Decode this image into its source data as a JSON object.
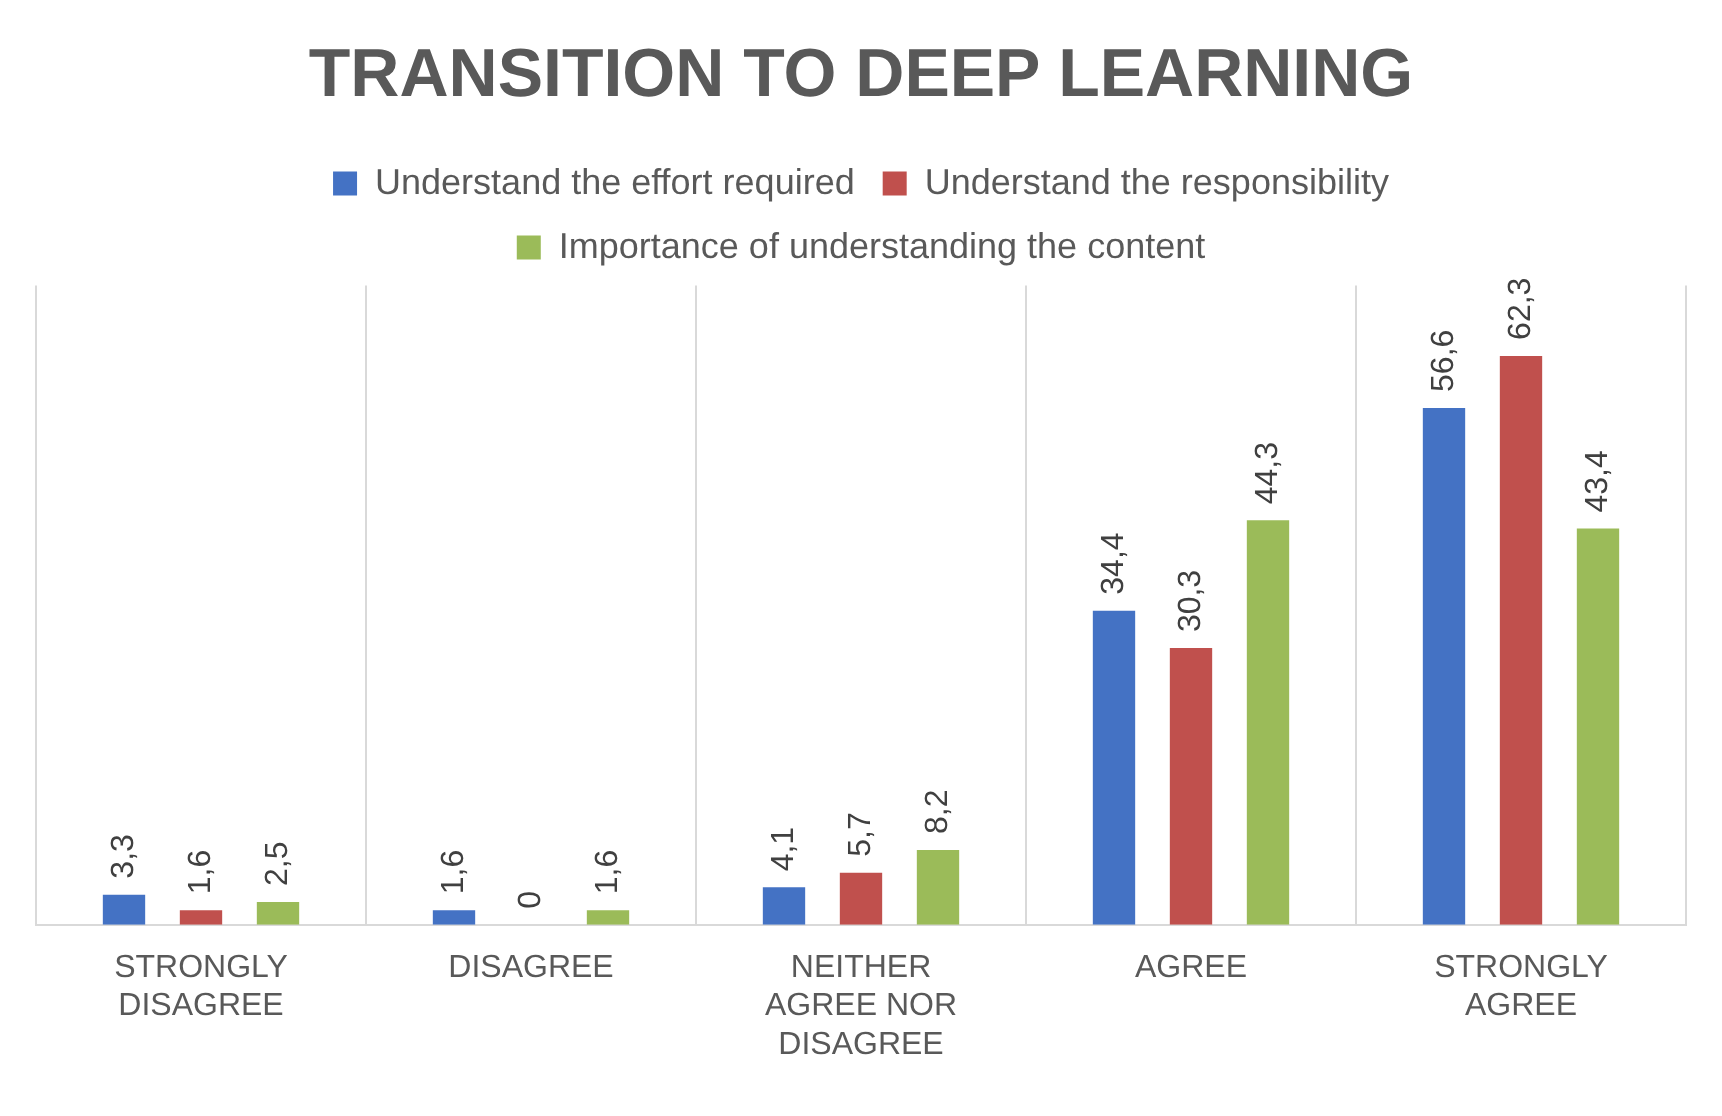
{
  "chart_data": {
    "type": "bar",
    "title": "TRANSITION TO DEEP LEARNING",
    "categories": [
      "STRONGLY DISAGREE",
      "DISAGREE",
      "NEITHER AGREE NOR DISAGREE",
      "AGREE",
      "STRONGLY AGREE"
    ],
    "series": [
      {
        "name": "Understand the effort required",
        "color": "#4472c4",
        "values": [
          3.3,
          1.6,
          4.1,
          34.4,
          56.6
        ],
        "value_labels": [
          "3,3",
          "1,6",
          "4,1",
          "34,4",
          "56,6"
        ]
      },
      {
        "name": "Understand the responsibility",
        "color": "#c0504d",
        "values": [
          1.6,
          0,
          5.7,
          30.3,
          62.3
        ],
        "value_labels": [
          "1,6",
          "0",
          "5,7",
          "30,3",
          "62,3"
        ]
      },
      {
        "name": "Importance of understanding the content",
        "color": "#9bbb59",
        "values": [
          2.5,
          1.6,
          8.2,
          44.3,
          43.4
        ],
        "value_labels": [
          "2,5",
          "1,6",
          "8,2",
          "44,3",
          "43,4"
        ]
      }
    ],
    "grid": "x",
    "legend": "top"
  }
}
